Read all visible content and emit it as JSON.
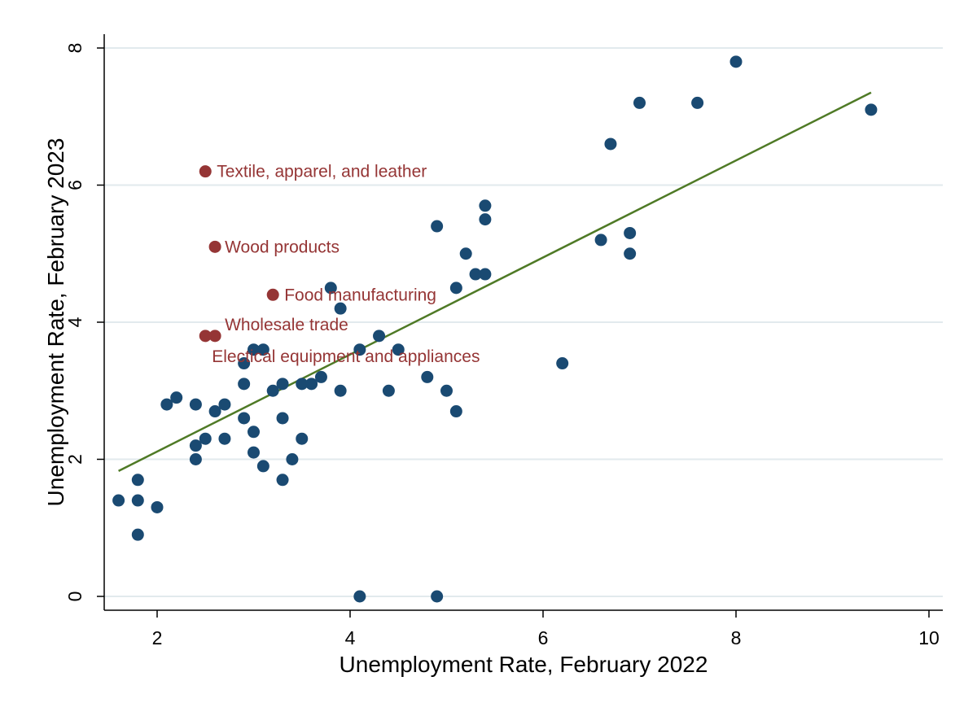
{
  "chart_data": {
    "type": "scatter",
    "title": "",
    "xlabel": "Unemployment Rate, February 2022",
    "ylabel": "Unemployment Rate, February 2023",
    "xlim": [
      1.5,
      10.2
    ],
    "ylim": [
      -0.2,
      8.2
    ],
    "xticks": [
      2,
      4,
      6,
      8,
      10
    ],
    "yticks": [
      0,
      2,
      4,
      6,
      8
    ],
    "grid": "horizontal",
    "colors": {
      "points": "#1a4a72",
      "highlight": "#953535",
      "fit_line": "#4f7a26",
      "grid": "#e2eaed"
    },
    "series": [
      {
        "points": [
          [
            1.6,
            1.4
          ],
          [
            1.8,
            1.7
          ],
          [
            1.8,
            1.4
          ],
          [
            1.8,
            0.9
          ],
          [
            2.0,
            1.3
          ],
          [
            2.1,
            2.8
          ],
          [
            2.2,
            2.9
          ],
          [
            2.4,
            2.8
          ],
          [
            2.4,
            2.2
          ],
          [
            2.4,
            2.0
          ],
          [
            2.5,
            2.3
          ],
          [
            2.6,
            2.7
          ],
          [
            2.7,
            2.8
          ],
          [
            2.7,
            2.3
          ],
          [
            2.9,
            3.4
          ],
          [
            2.9,
            3.1
          ],
          [
            2.9,
            2.6
          ],
          [
            3.0,
            3.6
          ],
          [
            3.0,
            2.4
          ],
          [
            3.0,
            2.1
          ],
          [
            3.1,
            3.6
          ],
          [
            3.1,
            1.9
          ],
          [
            3.2,
            3.0
          ],
          [
            3.3,
            3.1
          ],
          [
            3.3,
            2.6
          ],
          [
            3.3,
            1.7
          ],
          [
            3.4,
            2.0
          ],
          [
            3.5,
            3.1
          ],
          [
            3.5,
            2.3
          ],
          [
            3.6,
            3.1
          ],
          [
            3.7,
            3.2
          ],
          [
            3.8,
            4.5
          ],
          [
            3.9,
            4.2
          ],
          [
            3.9,
            3.0
          ],
          [
            4.1,
            3.6
          ],
          [
            4.1,
            0.0
          ],
          [
            4.3,
            3.8
          ],
          [
            4.4,
            3.0
          ],
          [
            4.5,
            3.6
          ],
          [
            4.8,
            3.2
          ],
          [
            4.9,
            5.4
          ],
          [
            4.9,
            0.0
          ],
          [
            5.0,
            3.0
          ],
          [
            5.1,
            4.5
          ],
          [
            5.1,
            2.7
          ],
          [
            5.2,
            5.0
          ],
          [
            5.3,
            4.7
          ],
          [
            5.4,
            5.7
          ],
          [
            5.4,
            5.5
          ],
          [
            5.4,
            4.7
          ],
          [
            6.2,
            3.4
          ],
          [
            6.6,
            5.2
          ],
          [
            6.7,
            6.6
          ],
          [
            6.9,
            5.3
          ],
          [
            6.9,
            5.0
          ],
          [
            7.0,
            7.2
          ],
          [
            7.6,
            7.2
          ],
          [
            8.0,
            7.8
          ],
          [
            9.4,
            7.1
          ]
        ]
      },
      {
        "points": [
          {
            "x": 2.5,
            "y": 6.2,
            "label": "Textile, apparel, and leather"
          },
          {
            "x": 2.6,
            "y": 5.1,
            "label": "Wood products"
          },
          {
            "x": 3.2,
            "y": 4.4,
            "label": "Food manufacturing"
          },
          {
            "x": 2.6,
            "y": 3.8,
            "label": "Wholesale trade"
          },
          {
            "x": 2.5,
            "y": 3.8,
            "label": "Electical equipment and appliances"
          }
        ]
      }
    ],
    "fit_line": {
      "x": [
        1.6,
        9.4
      ],
      "y": [
        1.83,
        7.35
      ]
    }
  }
}
